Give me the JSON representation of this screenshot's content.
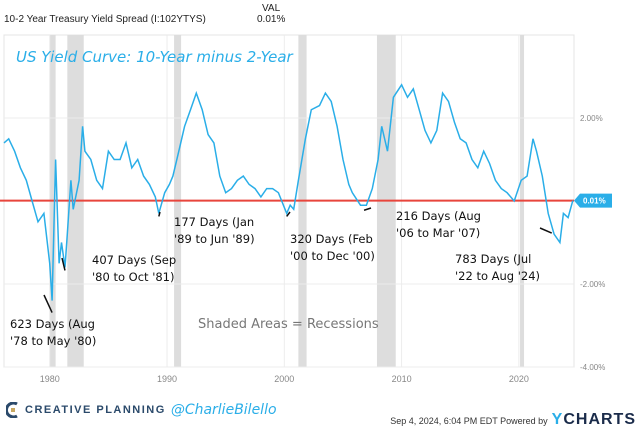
{
  "header": {
    "series_label": "10-2 Year Treasury Yield Spread (I:102YTYS)",
    "val_header": "VAL",
    "val": "0.01%"
  },
  "footer": {
    "brand": "CREATIVE PLANNING",
    "handle": "@CharlieBilello",
    "timestamp": "Sep 4, 2024, 6:04 PM EDT Powered by",
    "ycharts_y": "Y",
    "ycharts_rest": "CHARTS"
  },
  "chart_data": {
    "type": "line",
    "title": "US Yield Curve: 10-Year minus 2-Year",
    "xlim": [
      1976.1,
      2024.7
    ],
    "ylim": [
      -4,
      4
    ],
    "x_ticks": [
      1980,
      1990,
      2000,
      2010,
      2020
    ],
    "x_tick_labels": [
      "1980",
      "1990",
      "2000",
      "2010",
      "2020"
    ],
    "y_ticks": [
      2,
      -2,
      -4
    ],
    "y_tick_labels": [
      "2.00%",
      "-2.00%",
      "-4.00%"
    ],
    "grid": true,
    "line_color": "#2aaee8",
    "zero_line": {
      "value": 0.01,
      "color": "#e8453c",
      "label": "0.01%"
    },
    "recessions": [
      [
        1980.0,
        1980.5
      ],
      [
        1981.5,
        1982.9
      ],
      [
        1990.6,
        1991.2
      ],
      [
        2001.2,
        2001.9
      ],
      [
        2007.9,
        2009.5
      ],
      [
        2020.1,
        2020.4
      ]
    ],
    "recession_color": "#dddddd",
    "recession_note": "Shaded Areas = Recessions",
    "x": [
      1976.1,
      1976.5,
      1977,
      1977.5,
      1978,
      1978.5,
      1979,
      1979.5,
      1980.0,
      1980.2,
      1980.5,
      1980.8,
      1981.0,
      1981.3,
      1981.5,
      1981.8,
      1982.0,
      1982.5,
      1982.8,
      1983,
      1983.5,
      1984,
      1984.5,
      1985,
      1985.5,
      1986,
      1986.5,
      1987,
      1987.5,
      1988,
      1988.5,
      1989.0,
      1989.3,
      1989.8,
      1990.2,
      1990.5,
      1991,
      1991.5,
      1992,
      1992.5,
      1993,
      1993.5,
      1994,
      1994.5,
      1995,
      1995.5,
      1996,
      1996.5,
      1997,
      1997.5,
      1998,
      1998.5,
      1999,
      1999.5,
      2000.2,
      2000.5,
      2000.8,
      2001.2,
      2001.8,
      2002.3,
      2003,
      2003.5,
      2004,
      2004.5,
      2005,
      2005.5,
      2005.8,
      2006.5,
      2007,
      2007.5,
      2008,
      2008.3,
      2008.8,
      2009.3,
      2010,
      2010.5,
      2011,
      2011.5,
      2012,
      2012.5,
      2013,
      2013.5,
      2014,
      2014.5,
      2015,
      2015.5,
      2016,
      2016.5,
      2017,
      2017.5,
      2018,
      2018.5,
      2019,
      2019.6,
      2020.2,
      2020.7,
      2021.2,
      2021.5,
      2022,
      2022.5,
      2023,
      2023.5,
      2023.8,
      2024.2,
      2024.6
    ],
    "values": [
      1.4,
      1.5,
      1.2,
      0.8,
      0.5,
      0.0,
      -0.5,
      -0.3,
      -1.5,
      -2.4,
      1.0,
      -1.5,
      -1.0,
      -1.6,
      -0.8,
      0.5,
      -0.2,
      0.5,
      1.8,
      1.2,
      1.0,
      0.5,
      0.3,
      1.2,
      1.0,
      1.0,
      1.4,
      0.8,
      1.0,
      0.6,
      0.4,
      0.1,
      -0.3,
      0.2,
      0.4,
      0.6,
      1.2,
      1.8,
      2.2,
      2.6,
      2.2,
      1.6,
      1.4,
      0.6,
      0.2,
      0.3,
      0.5,
      0.6,
      0.4,
      0.3,
      0.1,
      0.3,
      0.3,
      0.2,
      -0.3,
      -0.1,
      -0.2,
      0.5,
      1.5,
      2.2,
      2.3,
      2.6,
      2.4,
      1.8,
      1.0,
      0.4,
      0.2,
      -0.1,
      -0.1,
      0.3,
      1.0,
      1.8,
      1.2,
      2.5,
      2.8,
      2.5,
      2.7,
      2.2,
      1.7,
      1.4,
      1.7,
      2.6,
      2.4,
      1.9,
      1.5,
      1.4,
      1.0,
      0.8,
      1.2,
      0.9,
      0.5,
      0.3,
      0.2,
      0.0,
      0.5,
      0.6,
      1.5,
      1.2,
      0.6,
      -0.3,
      -0.8,
      -1.0,
      -0.3,
      -0.4,
      0.01
    ],
    "annotations": [
      {
        "lines": [
          "623 Days (Aug",
          "'78 to May '80)"
        ],
        "point": [
          1980.2,
          -2.4
        ]
      },
      {
        "lines": [
          "407 Days (Sep",
          "'80 to Oct '81)"
        ],
        "point": [
          1981.3,
          -1.6
        ]
      },
      {
        "lines": [
          "177 Days (Jan",
          "'89 to Jun '89)"
        ],
        "point": [
          1989.3,
          -0.3
        ]
      },
      {
        "lines": [
          "320 Days (Feb",
          "'00 to Dec '00)"
        ],
        "point": [
          2000.2,
          -0.3
        ]
      },
      {
        "lines": [
          "216 Days (Aug",
          "'06 to Mar '07)"
        ],
        "point": [
          2006.8,
          -0.15
        ]
      },
      {
        "lines": [
          "783 Days (Jul",
          "'22 to Aug '24)"
        ],
        "point": [
          2022.8,
          -0.7
        ]
      }
    ]
  }
}
